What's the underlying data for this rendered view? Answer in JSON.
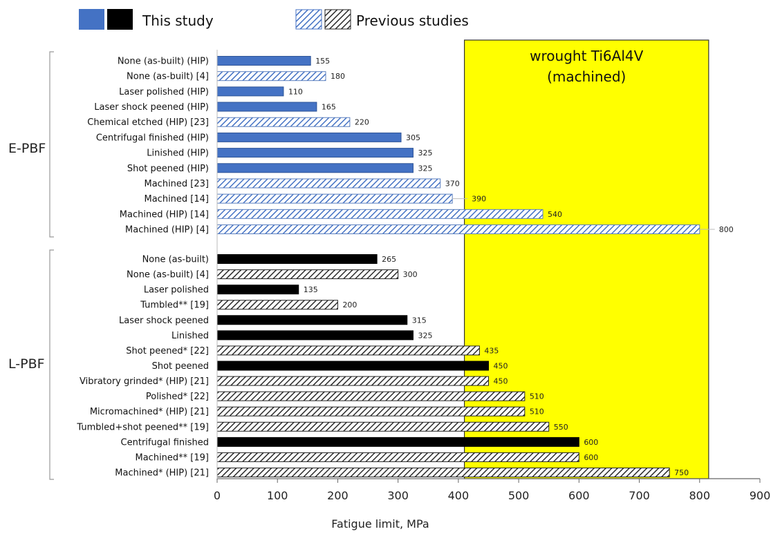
{
  "chart_data": {
    "type": "bar",
    "orientation": "horizontal",
    "xlabel": "Fatigue limit, MPa",
    "xlim": [
      0,
      900
    ],
    "xticks": [
      0,
      100,
      200,
      300,
      400,
      500,
      600,
      700,
      800,
      900
    ],
    "grid": false,
    "legend": {
      "placement": "top",
      "entries": [
        {
          "label": "This study",
          "styles": [
            "this-ebpf",
            "this-lpbf"
          ]
        },
        {
          "label": "Previous studies",
          "styles": [
            "prev-ebpf",
            "prev-lpbf"
          ]
        }
      ]
    },
    "colors": {
      "this_ebpf": "#4472C4",
      "this_lpbf": "#000000",
      "prev_ebpf_hatch": "#4472C4",
      "prev_ebpf_bg": "#ffffff",
      "prev_lpbf_hatch": "#2b2b2b",
      "band": "#FFFF00"
    },
    "reference_band": {
      "label_lines": [
        "wrought Ti6Al4V",
        "(machined)"
      ],
      "from": 410,
      "to": 815
    },
    "groups": [
      {
        "name": "E-PBF",
        "bars": [
          {
            "label": "None (as-built) (HIP)",
            "value": 155,
            "source": "this"
          },
          {
            "label": "None (as-built) [4]",
            "value": 180,
            "source": "previous"
          },
          {
            "label": "Laser polished (HIP)",
            "value": 110,
            "source": "this"
          },
          {
            "label": "Laser shock peened (HIP)",
            "value": 165,
            "source": "this"
          },
          {
            "label": "Chemical etched (HIP) [23]",
            "value": 220,
            "source": "previous"
          },
          {
            "label": "Centrifugal finished (HIP)",
            "value": 305,
            "source": "this"
          },
          {
            "label": "Linished (HIP)",
            "value": 325,
            "source": "this"
          },
          {
            "label": "Shot peened (HIP)",
            "value": 325,
            "source": "this"
          },
          {
            "label": "Machined [23]",
            "value": 370,
            "source": "previous"
          },
          {
            "label": "Machined [14]",
            "value": 390,
            "source": "previous"
          },
          {
            "label": "Machined (HIP) [14]",
            "value": 540,
            "source": "previous"
          },
          {
            "label": "Machined (HIP) [4]",
            "value": 800,
            "source": "previous"
          }
        ]
      },
      {
        "name": "L-PBF",
        "bars": [
          {
            "label": "None (as-built)",
            "value": 265,
            "source": "this"
          },
          {
            "label": "None (as-built) [4]",
            "value": 300,
            "source": "previous"
          },
          {
            "label": "Laser polished",
            "value": 135,
            "source": "this"
          },
          {
            "label": "Tumbled** [19]",
            "value": 200,
            "source": "previous"
          },
          {
            "label": "Laser shock peened",
            "value": 315,
            "source": "this"
          },
          {
            "label": "Linished",
            "value": 325,
            "source": "this"
          },
          {
            "label": "Shot peened* [22]",
            "value": 435,
            "source": "previous"
          },
          {
            "label": "Shot peened",
            "value": 450,
            "source": "this"
          },
          {
            "label": "Vibratory grinded* (HIP) [21]",
            "value": 450,
            "source": "previous"
          },
          {
            "label": "Polished* [22]",
            "value": 510,
            "source": "previous"
          },
          {
            "label": "Micromachined* (HIP) [21]",
            "value": 510,
            "source": "previous"
          },
          {
            "label": "Tumbled+shot peened** [19]",
            "value": 550,
            "source": "previous"
          },
          {
            "label": "Centrifugal finished",
            "value": 600,
            "source": "this"
          },
          {
            "label": "Machined** [19]",
            "value": 600,
            "source": "previous"
          },
          {
            "label": "Machined* (HIP) [21]",
            "value": 750,
            "source": "previous"
          }
        ]
      }
    ]
  }
}
